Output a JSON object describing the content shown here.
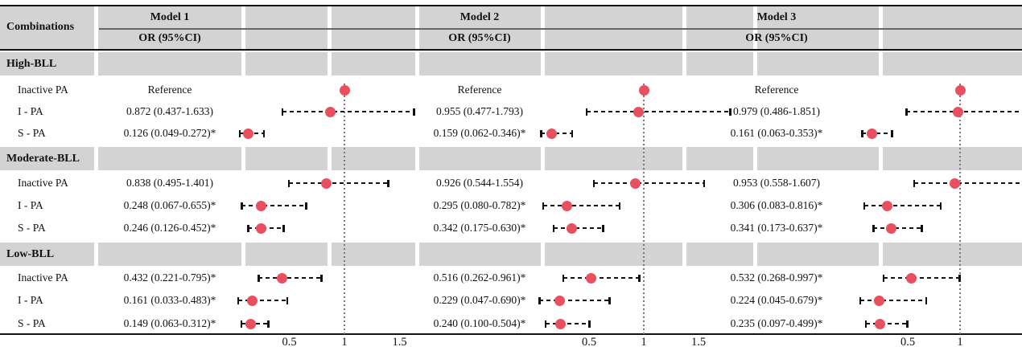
{
  "figure": {
    "combinations_header": "Combinations",
    "or_header": "OR (95%CI)",
    "reference_label": "Reference",
    "models": [
      {
        "name": "Model 1",
        "ticks": [
          {
            "label": "0.5",
            "value": 0.5
          },
          {
            "label": "1",
            "value": 1
          },
          {
            "label": "1.5",
            "value": 1.5
          }
        ]
      },
      {
        "name": "Model 2",
        "ticks": [
          {
            "label": "0.5",
            "value": 0.5
          },
          {
            "label": "1",
            "value": 1
          },
          {
            "label": "1.5",
            "value": 1.5
          }
        ]
      },
      {
        "name": "Model 3",
        "ticks": [
          {
            "label": "0.5",
            "value": 0.5
          },
          {
            "label": "1",
            "value": 1
          }
        ]
      }
    ]
  },
  "chart_data": {
    "type": "scatter",
    "subtype": "forest-plot-table",
    "title": "",
    "xlabel": "OR (95%CI)",
    "reference_line": 1.0,
    "x_range_models_1_2": [
      0.05,
      1.85
    ],
    "x_range_model_3": [
      0.04,
      1.6
    ],
    "grid": false,
    "groups": [
      {
        "label": "High-BLL",
        "rows": [
          {
            "label": "Inactive PA",
            "models": [
              {
                "text": "Reference",
                "reference": true,
                "or": 1.0,
                "ci_low": null,
                "ci_high": null,
                "significant": false
              },
              {
                "text": "Reference",
                "reference": true,
                "or": 1.0,
                "ci_low": null,
                "ci_high": null,
                "significant": false
              },
              {
                "text": "Reference",
                "reference": true,
                "or": 1.0,
                "ci_low": null,
                "ci_high": null,
                "significant": false
              }
            ]
          },
          {
            "label": "I - PA",
            "models": [
              {
                "text": "0.872 (0.437-1.633)",
                "reference": false,
                "or": 0.872,
                "ci_low": 0.437,
                "ci_high": 1.633,
                "significant": false
              },
              {
                "text": "0.955 (0.477-1.793)",
                "reference": false,
                "or": 0.955,
                "ci_low": 0.477,
                "ci_high": 1.793,
                "significant": false
              },
              {
                "text": "0.979 (0.486-1.851)",
                "reference": false,
                "or": 0.979,
                "ci_low": 0.486,
                "ci_high": 1.851,
                "significant": false
              }
            ]
          },
          {
            "label": "S - PA",
            "models": [
              {
                "text": "0.126 (0.049-0.272)*",
                "reference": false,
                "or": 0.126,
                "ci_low": 0.049,
                "ci_high": 0.272,
                "significant": true
              },
              {
                "text": "0.159 (0.062-0.346)*",
                "reference": false,
                "or": 0.159,
                "ci_low": 0.062,
                "ci_high": 0.346,
                "significant": true
              },
              {
                "text": "0.161 (0.063-0.353)*",
                "reference": false,
                "or": 0.161,
                "ci_low": 0.063,
                "ci_high": 0.353,
                "significant": true
              }
            ]
          }
        ]
      },
      {
        "label": "Moderate-BLL",
        "rows": [
          {
            "label": "Inactive PA",
            "models": [
              {
                "text": "0.838 (0.495-1.401)",
                "reference": false,
                "or": 0.838,
                "ci_low": 0.495,
                "ci_high": 1.401,
                "significant": false
              },
              {
                "text": "0.926 (0.544-1.554)",
                "reference": false,
                "or": 0.926,
                "ci_low": 0.544,
                "ci_high": 1.554,
                "significant": false
              },
              {
                "text": "0.953 (0.558-1.607)",
                "reference": false,
                "or": 0.953,
                "ci_low": 0.558,
                "ci_high": 1.607,
                "significant": false
              }
            ]
          },
          {
            "label": "I - PA",
            "models": [
              {
                "text": "0.248 (0.067-0.655)*",
                "reference": false,
                "or": 0.248,
                "ci_low": 0.067,
                "ci_high": 0.655,
                "significant": true
              },
              {
                "text": "0.295 (0.080-0.782)*",
                "reference": false,
                "or": 0.295,
                "ci_low": 0.08,
                "ci_high": 0.782,
                "significant": true
              },
              {
                "text": "0.306 (0.083-0.816)*",
                "reference": false,
                "or": 0.306,
                "ci_low": 0.083,
                "ci_high": 0.816,
                "significant": true
              }
            ]
          },
          {
            "label": "S - PA",
            "models": [
              {
                "text": "0.246 (0.126-0.452)*",
                "reference": false,
                "or": 0.246,
                "ci_low": 0.126,
                "ci_high": 0.452,
                "significant": true
              },
              {
                "text": "0.342 (0.175-0.630)*",
                "reference": false,
                "or": 0.342,
                "ci_low": 0.175,
                "ci_high": 0.63,
                "significant": true
              },
              {
                "text": "0.341 (0.173-0.637)*",
                "reference": false,
                "or": 0.341,
                "ci_low": 0.173,
                "ci_high": 0.637,
                "significant": true
              }
            ]
          }
        ]
      },
      {
        "label": "Low-BLL",
        "rows": [
          {
            "label": "Inactive PA",
            "models": [
              {
                "text": "0.432 (0.221-0.795)*",
                "reference": false,
                "or": 0.432,
                "ci_low": 0.221,
                "ci_high": 0.795,
                "significant": true
              },
              {
                "text": "0.516 (0.262-0.961)*",
                "reference": false,
                "or": 0.516,
                "ci_low": 0.262,
                "ci_high": 0.961,
                "significant": true
              },
              {
                "text": "0.532 (0.268-0.997)*",
                "reference": false,
                "or": 0.532,
                "ci_low": 0.268,
                "ci_high": 0.997,
                "significant": true
              }
            ]
          },
          {
            "label": "I - PA",
            "models": [
              {
                "text": "0.161 (0.033-0.483)*",
                "reference": false,
                "or": 0.161,
                "ci_low": 0.033,
                "ci_high": 0.483,
                "significant": true
              },
              {
                "text": "0.229 (0.047-0.690)*",
                "reference": false,
                "or": 0.229,
                "ci_low": 0.047,
                "ci_high": 0.69,
                "significant": true
              },
              {
                "text": "0.224 (0.045-0.679)*",
                "reference": false,
                "or": 0.224,
                "ci_low": 0.045,
                "ci_high": 0.679,
                "significant": true
              }
            ]
          },
          {
            "label": "S - PA",
            "models": [
              {
                "text": "0.149 (0.063-0.312)*",
                "reference": false,
                "or": 0.149,
                "ci_low": 0.063,
                "ci_high": 0.312,
                "significant": true
              },
              {
                "text": "0.240 (0.100-0.504)*",
                "reference": false,
                "or": 0.24,
                "ci_low": 0.1,
                "ci_high": 0.504,
                "significant": true
              },
              {
                "text": "0.235 (0.097-0.499)*",
                "reference": false,
                "or": 0.235,
                "ci_low": 0.097,
                "ci_high": 0.499,
                "significant": true
              }
            ]
          }
        ]
      }
    ]
  },
  "colors": {
    "marker_dot": "#e8505f",
    "section_band": "#d3d3d3",
    "whisker": "#111111",
    "reference_line": "#7a7a7a",
    "rule": "#111111",
    "model_divider": "#666666"
  }
}
